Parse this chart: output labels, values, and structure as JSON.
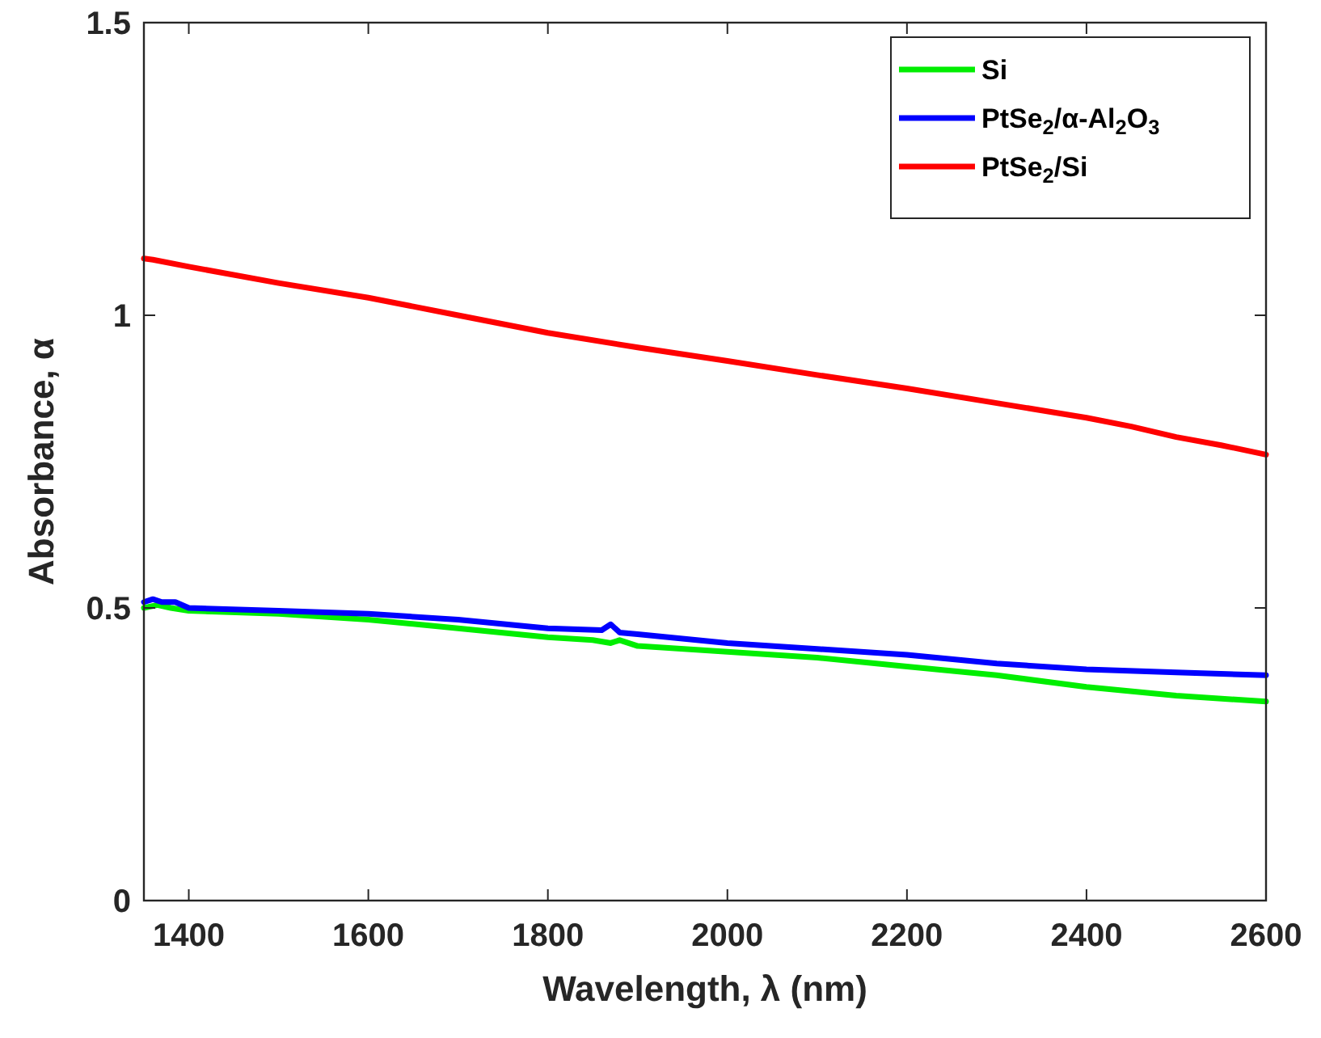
{
  "chart_data": {
    "type": "line",
    "xlabel": "Wavelength, λ (nm)",
    "ylabel": "Absorbance, α",
    "xlim": [
      1350,
      2600
    ],
    "xticks": [
      1400,
      1600,
      1800,
      2000,
      2200,
      2400,
      2600
    ],
    "ylim": [
      0,
      1.5
    ],
    "yticks": [
      0,
      0.5,
      1,
      1.5
    ],
    "grid": false,
    "legend": "top right",
    "line_style": "solid",
    "marker": "none",
    "series": [
      {
        "name": "Si",
        "color": "#00ee00",
        "x": [
          1350,
          1365,
          1380,
          1400,
          1500,
          1600,
          1700,
          1800,
          1850,
          1870,
          1880,
          1900,
          2000,
          2100,
          2200,
          2300,
          2400,
          2500,
          2600
        ],
        "values": [
          0.5,
          0.505,
          0.5,
          0.495,
          0.49,
          0.48,
          0.465,
          0.45,
          0.445,
          0.44,
          0.445,
          0.435,
          0.425,
          0.415,
          0.4,
          0.385,
          0.365,
          0.35,
          0.34
        ]
      },
      {
        "name": "PtSe$_{2}$/α-Al$_{2}$O$_{3}$",
        "color": "#0000ff",
        "x": [
          1350,
          1360,
          1370,
          1385,
          1400,
          1500,
          1600,
          1700,
          1800,
          1860,
          1870,
          1880,
          1900,
          2000,
          2100,
          2200,
          2300,
          2400,
          2500,
          2600
        ],
        "values": [
          0.51,
          0.515,
          0.51,
          0.51,
          0.5,
          0.495,
          0.49,
          0.48,
          0.465,
          0.462,
          0.472,
          0.458,
          0.455,
          0.44,
          0.43,
          0.42,
          0.405,
          0.395,
          0.39,
          0.385
        ]
      },
      {
        "name": "PtSe$_{2}$/Si",
        "color": "#ff0000",
        "x": [
          1350,
          1360,
          1400,
          1500,
          1600,
          1700,
          1800,
          1900,
          2000,
          2100,
          2200,
          2300,
          2400,
          2450,
          2500,
          2550,
          2600
        ],
        "values": [
          1.097,
          1.095,
          1.083,
          1.055,
          1.03,
          1.0,
          0.97,
          0.945,
          0.922,
          0.898,
          0.875,
          0.85,
          0.825,
          0.81,
          0.792,
          0.778,
          0.762
        ]
      }
    ]
  }
}
